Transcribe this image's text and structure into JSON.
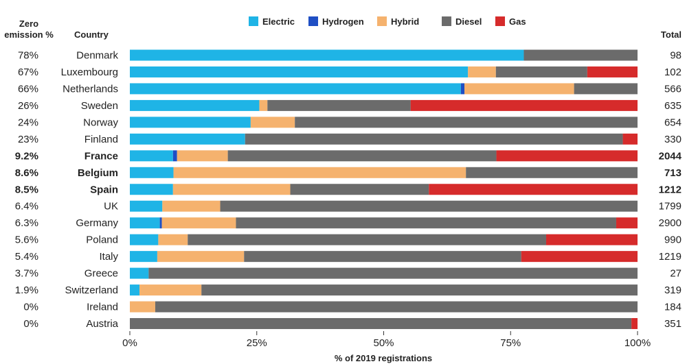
{
  "header": {
    "zero_emission_line1": "Zero",
    "zero_emission_line2": "emission %",
    "country": "Country",
    "total": "Total"
  },
  "chart_data": {
    "type": "bar",
    "orientation": "horizontal",
    "stacked": true,
    "normalized": true,
    "xlabel": "% of 2019 registrations",
    "xlim": [
      0,
      100
    ],
    "xticks": [
      "0%",
      "25%",
      "50%",
      "75%",
      "100%"
    ],
    "legend_placement": "top-center",
    "categories": [
      "Denmark",
      "Luxembourg",
      "Netherlands",
      "Sweden",
      "Norway",
      "Finland",
      "France",
      "Belgium",
      "Spain",
      "UK",
      "Germany",
      "Poland",
      "Italy",
      "Greece",
      "Switzerland",
      "Ireland",
      "Austria"
    ],
    "highlighted": [
      "France",
      "Belgium",
      "Spain"
    ],
    "zero_emission_labels": [
      "78%",
      "67%",
      "66%",
      "26%",
      "24%",
      "23%",
      "9.2%",
      "8.6%",
      "8.5%",
      "6.4%",
      "6.3%",
      "5.6%",
      "5.4%",
      "3.7%",
      "1.9%",
      "0%",
      "0%"
    ],
    "totals": [
      98,
      102,
      566,
      635,
      654,
      330,
      2044,
      713,
      1212,
      1799,
      2900,
      990,
      1219,
      27,
      319,
      184,
      351
    ],
    "series": [
      {
        "name": "Electric",
        "color": "#1fb4e6",
        "values": [
          77.6,
          66.6,
          65.2,
          25.5,
          23.8,
          22.7,
          8.5,
          8.6,
          8.5,
          6.4,
          5.9,
          5.6,
          5.4,
          3.7,
          1.9,
          0,
          0
        ]
      },
      {
        "name": "Hydrogen",
        "color": "#1f4fc4",
        "values": [
          0,
          0,
          0.7,
          0,
          0,
          0,
          0.8,
          0,
          0,
          0,
          0.4,
          0,
          0,
          0,
          0,
          0,
          0
        ]
      },
      {
        "name": "Hybrid",
        "color": "#f5b26e",
        "values": [
          0,
          5.5,
          21.6,
          1.6,
          8.7,
          0,
          10,
          57.6,
          23.1,
          11.4,
          14.6,
          5.8,
          17.1,
          0,
          12.2,
          5,
          0
        ]
      },
      {
        "name": "Diesel",
        "color": "#6b6b6b",
        "values": [
          22.4,
          18,
          12.5,
          28.2,
          67.5,
          74.4,
          52.9,
          33.8,
          27.3,
          82.2,
          74.9,
          70.6,
          54.6,
          96.3,
          85.9,
          95,
          98.8
        ]
      },
      {
        "name": "Gas",
        "color": "#d62b2b",
        "values": [
          0,
          9.9,
          0,
          44.7,
          0,
          2.9,
          27.8,
          0,
          41.1,
          0,
          4.2,
          18,
          22.9,
          0,
          0,
          0,
          1.2
        ]
      }
    ]
  }
}
